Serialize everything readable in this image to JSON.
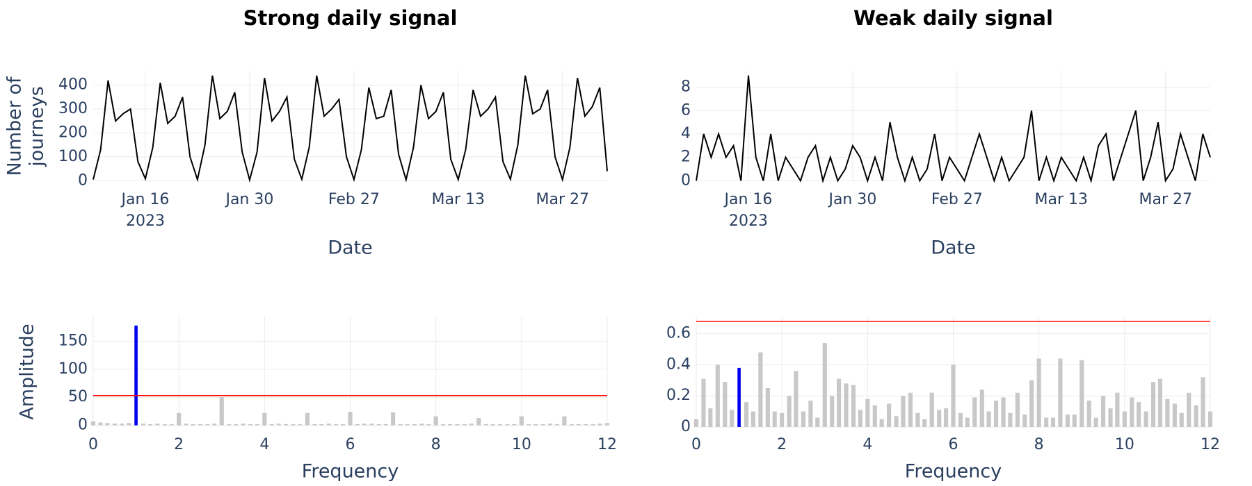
{
  "chart_data": [
    {
      "type": "line",
      "title": "Strong daily signal",
      "xlabel": "Date",
      "ylabel_lines": [
        "Number of",
        "journeys"
      ],
      "color": "#000000",
      "x": [
        "2023-01-09",
        "2023-01-10",
        "2023-01-11",
        "2023-01-12",
        "2023-01-13",
        "2023-01-14",
        "2023-01-15",
        "2023-01-16",
        "2023-01-17",
        "2023-01-18",
        "2023-01-19",
        "2023-01-20",
        "2023-01-21",
        "2023-01-22",
        "2023-01-23",
        "2023-01-24",
        "2023-01-25",
        "2023-01-26",
        "2023-01-27",
        "2023-01-28",
        "2023-01-29",
        "2023-01-30",
        "2023-01-31",
        "2023-02-01",
        "2023-02-02",
        "2023-02-03",
        "2023-02-04",
        "2023-02-05",
        "2023-02-06",
        "2023-02-07",
        "2023-02-08",
        "2023-02-09",
        "2023-02-10",
        "2023-02-11",
        "2023-02-12",
        "2023-02-27",
        "2023-02-28",
        "2023-03-01",
        "2023-03-02",
        "2023-03-03",
        "2023-03-04",
        "2023-03-05",
        "2023-03-06",
        "2023-03-07",
        "2023-03-08",
        "2023-03-09",
        "2023-03-10",
        "2023-03-11",
        "2023-03-12",
        "2023-03-13",
        "2023-03-14",
        "2023-03-15",
        "2023-03-16",
        "2023-03-17",
        "2023-03-18",
        "2023-03-19",
        "2023-03-20",
        "2023-03-21",
        "2023-03-22",
        "2023-03-23",
        "2023-03-24",
        "2023-03-25",
        "2023-03-26",
        "2023-03-27",
        "2023-03-28",
        "2023-03-29",
        "2023-03-30",
        "2023-03-31",
        "2023-04-01",
        "2023-04-02"
      ],
      "values": [
        5,
        130,
        420,
        250,
        280,
        300,
        80,
        8,
        140,
        410,
        240,
        270,
        350,
        100,
        5,
        150,
        440,
        260,
        290,
        370,
        120,
        3,
        120,
        430,
        250,
        290,
        350,
        90,
        6,
        140,
        440,
        270,
        300,
        340,
        100,
        5,
        130,
        390,
        260,
        270,
        380,
        110,
        4,
        140,
        400,
        260,
        290,
        370,
        90,
        5,
        130,
        380,
        270,
        300,
        350,
        80,
        6,
        150,
        440,
        280,
        300,
        380,
        100,
        5,
        140,
        430,
        270,
        310,
        390,
        40
      ],
      "xticks": [
        {
          "value": "2023-01-16",
          "label": "Jan 16",
          "sublabel": "2023"
        },
        {
          "value": "2023-01-30",
          "label": "Jan 30"
        },
        {
          "value": "2023-02-27",
          "label": "Feb 27"
        },
        {
          "value": "2023-03-13",
          "label": "Mar 13"
        },
        {
          "value": "2023-03-27",
          "label": "Mar 27"
        }
      ],
      "ylim": [
        -5,
        460
      ],
      "yticks": [
        0,
        100,
        200,
        300,
        400
      ],
      "grid": true
    },
    {
      "type": "line",
      "title": "Weak daily signal",
      "xlabel": "Date",
      "color": "#000000",
      "x": [
        "2023-01-09",
        "2023-01-10",
        "2023-01-11",
        "2023-01-12",
        "2023-01-13",
        "2023-01-14",
        "2023-01-15",
        "2023-01-16",
        "2023-01-17",
        "2023-01-18",
        "2023-01-19",
        "2023-01-20",
        "2023-01-21",
        "2023-01-22",
        "2023-01-23",
        "2023-01-24",
        "2023-01-25",
        "2023-01-26",
        "2023-01-27",
        "2023-01-28",
        "2023-01-29",
        "2023-01-30",
        "2023-01-31",
        "2023-02-01",
        "2023-02-02",
        "2023-02-03",
        "2023-02-04",
        "2023-02-05",
        "2023-02-06",
        "2023-02-07",
        "2023-02-08",
        "2023-02-09",
        "2023-02-10",
        "2023-02-11",
        "2023-02-12",
        "2023-02-27",
        "2023-02-28",
        "2023-03-01",
        "2023-03-02",
        "2023-03-03",
        "2023-03-04",
        "2023-03-05",
        "2023-03-06",
        "2023-03-07",
        "2023-03-08",
        "2023-03-09",
        "2023-03-10",
        "2023-03-11",
        "2023-03-12",
        "2023-03-13",
        "2023-03-14",
        "2023-03-15",
        "2023-03-16",
        "2023-03-17",
        "2023-03-18",
        "2023-03-19",
        "2023-03-20",
        "2023-03-21",
        "2023-03-22",
        "2023-03-23",
        "2023-03-24",
        "2023-03-25",
        "2023-03-26",
        "2023-03-27",
        "2023-03-28",
        "2023-03-29",
        "2023-03-30",
        "2023-03-31",
        "2023-04-01",
        "2023-04-02"
      ],
      "values": [
        0,
        4,
        2,
        4,
        2,
        3,
        0,
        9,
        2,
        0,
        4,
        0,
        2,
        1,
        0,
        2,
        3,
        0,
        2,
        0,
        1,
        3,
        2,
        0,
        2,
        0,
        5,
        2,
        0,
        2,
        0,
        1,
        4,
        0,
        2,
        1,
        0,
        2,
        4,
        2,
        0,
        2,
        0,
        1,
        2,
        6,
        0,
        2,
        0,
        2,
        1,
        0,
        2,
        0,
        3,
        4,
        0,
        2,
        4,
        6,
        0,
        2,
        5,
        0,
        1,
        4,
        2,
        0,
        4,
        2
      ],
      "xticks": [
        {
          "value": "2023-01-16",
          "label": "Jan 16",
          "sublabel": "2023"
        },
        {
          "value": "2023-01-30",
          "label": "Jan 30"
        },
        {
          "value": "2023-02-27",
          "label": "Feb 27"
        },
        {
          "value": "2023-03-13",
          "label": "Mar 13"
        },
        {
          "value": "2023-03-27",
          "label": "Mar 27"
        }
      ],
      "ylim": [
        -0.1,
        9.4
      ],
      "yticks": [
        0,
        2,
        4,
        6,
        8
      ],
      "grid": true
    },
    {
      "type": "bar",
      "xlabel": "Frequency",
      "ylabel_lines": [
        "Amplitude"
      ],
      "color": "#c8c8c8",
      "highlight": {
        "x": 1,
        "color": "#0000ee"
      },
      "threshold": 53,
      "threshold_color": "#ff0000",
      "x": [
        0,
        0.17,
        0.33,
        0.5,
        0.67,
        0.83,
        1,
        1.17,
        1.33,
        1.5,
        1.67,
        1.83,
        2,
        2.17,
        2.33,
        2.5,
        2.67,
        2.83,
        3,
        3.17,
        3.33,
        3.5,
        3.67,
        3.83,
        4,
        4.17,
        4.33,
        4.5,
        4.67,
        4.83,
        5,
        5.17,
        5.33,
        5.5,
        5.67,
        5.83,
        6,
        6.17,
        6.33,
        6.5,
        6.67,
        6.83,
        7,
        7.17,
        7.33,
        7.5,
        7.67,
        7.83,
        8,
        8.17,
        8.33,
        8.5,
        8.67,
        8.83,
        9,
        9.17,
        9.33,
        9.5,
        9.67,
        9.83,
        10,
        10.17,
        10.33,
        10.5,
        10.67,
        10.83,
        11,
        11.17,
        11.33,
        11.5,
        11.67,
        11.83,
        12
      ],
      "values": [
        7,
        5,
        4,
        3,
        3,
        4,
        178,
        3,
        2,
        3,
        2,
        2,
        22,
        3,
        2,
        2,
        2,
        3,
        50,
        2,
        2,
        3,
        2,
        2,
        22,
        2,
        3,
        2,
        2,
        2,
        22,
        2,
        2,
        3,
        2,
        2,
        24,
        2,
        3,
        3,
        2,
        2,
        23,
        2,
        2,
        2,
        3,
        2,
        16,
        2,
        2,
        2,
        2,
        3,
        13,
        2,
        2,
        2,
        2,
        2,
        16,
        2,
        2,
        2,
        3,
        2,
        16,
        2,
        2,
        2,
        2,
        3,
        4
      ],
      "xlim": [
        0,
        12
      ],
      "xticks": [
        0,
        2,
        4,
        6,
        8,
        10,
        12
      ],
      "ylim": [
        -3,
        194
      ],
      "yticks": [
        0,
        50,
        100,
        150
      ],
      "grid": true
    },
    {
      "type": "bar",
      "xlabel": "Frequency",
      "color": "#c8c8c8",
      "highlight": {
        "x": 1,
        "color": "#0000ee"
      },
      "threshold": 0.68,
      "threshold_color": "#ff0000",
      "x": [
        0,
        0.17,
        0.33,
        0.5,
        0.67,
        0.83,
        1,
        1.17,
        1.33,
        1.5,
        1.67,
        1.83,
        2,
        2.17,
        2.33,
        2.5,
        2.67,
        2.83,
        3,
        3.17,
        3.33,
        3.5,
        3.67,
        3.83,
        4,
        4.17,
        4.33,
        4.5,
        4.67,
        4.83,
        5,
        5.17,
        5.33,
        5.5,
        5.67,
        5.83,
        6,
        6.17,
        6.33,
        6.5,
        6.67,
        6.83,
        7,
        7.17,
        7.33,
        7.5,
        7.67,
        7.83,
        8,
        8.17,
        8.33,
        8.5,
        8.67,
        8.83,
        9,
        9.17,
        9.33,
        9.5,
        9.67,
        9.83,
        10,
        10.17,
        10.33,
        10.5,
        10.67,
        10.83,
        11,
        11.17,
        11.33,
        11.5,
        11.67,
        11.83,
        12
      ],
      "values": [
        0.05,
        0.31,
        0.12,
        0.4,
        0.29,
        0.11,
        0.38,
        0.16,
        0.1,
        0.48,
        0.25,
        0.1,
        0.09,
        0.2,
        0.36,
        0.1,
        0.17,
        0.06,
        0.54,
        0.2,
        0.31,
        0.28,
        0.27,
        0.11,
        0.18,
        0.14,
        0.05,
        0.15,
        0.07,
        0.2,
        0.22,
        0.09,
        0.05,
        0.22,
        0.11,
        0.12,
        0.4,
        0.09,
        0.06,
        0.19,
        0.24,
        0.1,
        0.17,
        0.19,
        0.09,
        0.22,
        0.08,
        0.3,
        0.44,
        0.06,
        0.06,
        0.44,
        0.08,
        0.08,
        0.43,
        0.17,
        0.06,
        0.2,
        0.12,
        0.22,
        0.1,
        0.19,
        0.16,
        0.1,
        0.29,
        0.31,
        0.18,
        0.15,
        0.09,
        0.22,
        0.14,
        0.32,
        0.1
      ],
      "xlim": [
        0,
        12
      ],
      "xticks": [
        0,
        2,
        4,
        6,
        8,
        10,
        12
      ],
      "ylim": [
        0,
        0.71
      ],
      "yticks": [
        0,
        0.2,
        0.4,
        0.6
      ],
      "grid": true
    }
  ]
}
